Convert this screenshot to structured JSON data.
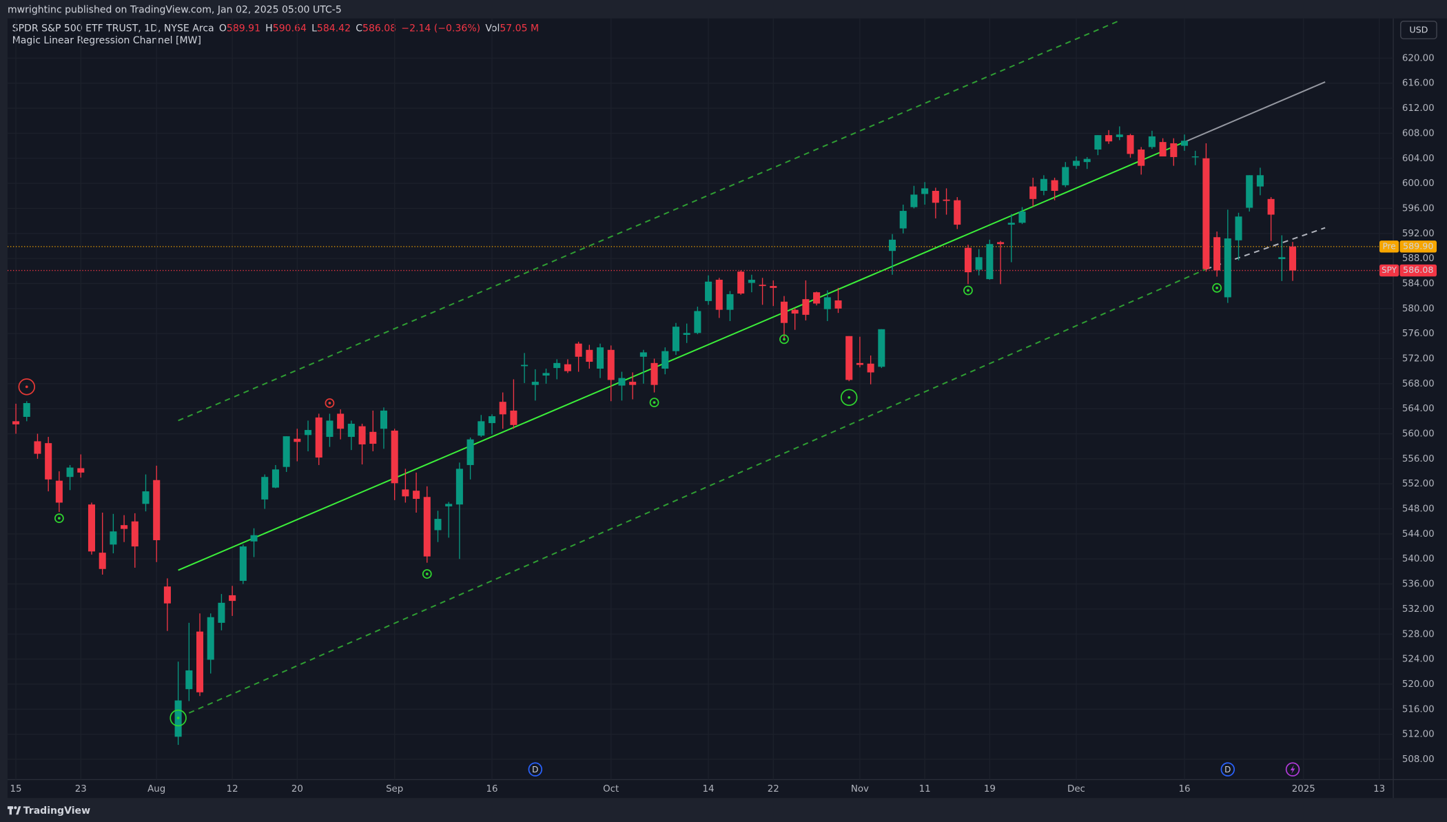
{
  "header": {
    "text": "mwrightinc published on TradingView.com, Jan 02, 2025 05:00 UTC-5"
  },
  "currency": "USD",
  "legend": {
    "symbol": "SPDR S&P 500 ETF TRUST, 1D, NYSE Arca",
    "ohlc": [
      {
        "key": "O",
        "value": 589.91
      },
      {
        "key": "H",
        "value": 590.64
      },
      {
        "key": "L",
        "value": 584.42
      },
      {
        "key": "C",
        "value": 586.08
      }
    ],
    "change": "−2.14 (−0.36%)",
    "vol_key": "Vol",
    "vol": "57.05 M",
    "indicator": "Magic Linear Regression Channel [MW]"
  },
  "footer": {
    "brand": "TradingView"
  },
  "chart_data": {
    "type": "candlestick",
    "up_color": "#089981",
    "down_color": "#f23645",
    "grid": true,
    "xlim": [
      -0.77,
      127.3
    ],
    "ylim": [
      504.76,
      626.34
    ],
    "xticks": [
      {
        "value": 0,
        "label": "15"
      },
      {
        "value": 6,
        "label": "23"
      },
      {
        "value": 13,
        "label": "Aug"
      },
      {
        "value": 20,
        "label": "12"
      },
      {
        "value": 26,
        "label": "20"
      },
      {
        "value": 35,
        "label": "Sep"
      },
      {
        "value": 44,
        "label": "16"
      },
      {
        "value": 55,
        "label": "Oct"
      },
      {
        "value": 64,
        "label": "14"
      },
      {
        "value": 70,
        "label": "22"
      },
      {
        "value": 78,
        "label": "Nov"
      },
      {
        "value": 84,
        "label": "11"
      },
      {
        "value": 90,
        "label": "19"
      },
      {
        "value": 98,
        "label": "Dec"
      },
      {
        "value": 108,
        "label": "16"
      },
      {
        "value": 119,
        "label": "2025"
      },
      {
        "value": 126,
        "label": "13"
      }
    ],
    "yticks": [
      {
        "value": 508,
        "label": "508.00"
      },
      {
        "value": 512,
        "label": "512.00"
      },
      {
        "value": 516,
        "label": "516.00"
      },
      {
        "value": 520,
        "label": "520.00"
      },
      {
        "value": 524,
        "label": "524.00"
      },
      {
        "value": 528,
        "label": "528.00"
      },
      {
        "value": 532,
        "label": "532.00"
      },
      {
        "value": 536,
        "label": "536.00"
      },
      {
        "value": 540,
        "label": "540.00"
      },
      {
        "value": 544,
        "label": "544.00"
      },
      {
        "value": 548,
        "label": "548.00"
      },
      {
        "value": 552,
        "label": "552.00"
      },
      {
        "value": 556,
        "label": "556.00"
      },
      {
        "value": 560,
        "label": "560.00"
      },
      {
        "value": 564,
        "label": "564.00"
      },
      {
        "value": 568,
        "label": "568.00"
      },
      {
        "value": 572,
        "label": "572.00"
      },
      {
        "value": 576,
        "label": "576.00"
      },
      {
        "value": 580,
        "label": "580.00"
      },
      {
        "value": 584,
        "label": "584.00"
      },
      {
        "value": 588,
        "label": "588.00"
      },
      {
        "value": 592,
        "label": "592.00"
      },
      {
        "value": 596,
        "label": "596.00"
      },
      {
        "value": 600,
        "label": "600.00"
      },
      {
        "value": 604,
        "label": "604.00"
      },
      {
        "value": 608,
        "label": "608.00"
      },
      {
        "value": 612,
        "label": "612.00"
      },
      {
        "value": 616,
        "label": "616.00"
      },
      {
        "value": 620,
        "label": "620.00"
      }
    ],
    "open": [
      562.0,
      562.7,
      558.8,
      558.5,
      552.5,
      553.1,
      554.5,
      548.7,
      541.0,
      542.3,
      545.4,
      546.0,
      548.8,
      552.6,
      535.6,
      511.6,
      519.2,
      528.4,
      523.9,
      529.8,
      534.2,
      536.5,
      542.8,
      549.5,
      551.4,
      554.7,
      559.2,
      559.8,
      562.6,
      559.5,
      563.2,
      559.5,
      561.2,
      560.3,
      560.8,
      560.5,
      551.1,
      550.9,
      549.9,
      544.6,
      548.4,
      548.7,
      555.0,
      559.7,
      561.7,
      565.1,
      563.7,
      570.8,
      567.8,
      569.3,
      570.5,
      571.1,
      574.4,
      573.4,
      570.4,
      573.4,
      567.7,
      568.3,
      572.3,
      571.3,
      570.4,
      573.2,
      575.8,
      576.1,
      581.2,
      584.6,
      579.8,
      585.9,
      584.1,
      583.8,
      583.6,
      581.1,
      579.8,
      581.5,
      582.6,
      579.9,
      581.3,
      575.6,
      571.3,
      571.2,
      570.7,
      589.2,
      592.8,
      596.2,
      598.3,
      598.8,
      597.4,
      597.3,
      589.7,
      586.2,
      584.7,
      590.6,
      593.4,
      593.7,
      599.5,
      598.8,
      600.5,
      599.7,
      602.8,
      603.4,
      605.4,
      607.7,
      607.4,
      607.7,
      605.4,
      605.8,
      606.6,
      606.4,
      606.0,
      604.2,
      604.0,
      591.4,
      581.8,
      590.9,
      596.1,
      599.5,
      597.5,
      587.9,
      589.91
    ],
    "high": [
      564.8,
      565.2,
      560.0,
      559.5,
      554.0,
      555.0,
      556.7,
      549.0,
      547.4,
      547.2,
      547.0,
      547.3,
      553.5,
      554.9,
      536.9,
      523.6,
      529.8,
      531.3,
      531.3,
      534.4,
      535.7,
      542.3,
      544.9,
      553.5,
      555.0,
      559.6,
      560.8,
      562.1,
      563.2,
      563.2,
      563.9,
      562.1,
      561.6,
      563.7,
      564.2,
      560.8,
      554.4,
      553.8,
      551.6,
      547.7,
      549.1,
      555.4,
      559.4,
      563.0,
      563.1,
      566.6,
      568.7,
      572.9,
      570.3,
      570.4,
      571.9,
      571.9,
      574.7,
      574.2,
      574.4,
      574.1,
      569.9,
      569.8,
      573.4,
      572.0,
      573.8,
      577.7,
      577.6,
      580.3,
      585.3,
      584.9,
      582.8,
      586.1,
      585.4,
      584.9,
      584.5,
      582.0,
      580.1,
      584.5,
      582.7,
      582.9,
      583.3,
      575.6,
      575.5,
      572.5,
      576.7,
      591.9,
      596.6,
      599.6,
      600.2,
      599.3,
      599.2,
      597.8,
      590.2,
      589.5,
      591.0,
      590.8,
      595.1,
      596.2,
      600.9,
      601.3,
      600.9,
      603.4,
      604.3,
      604.2,
      607.7,
      608.5,
      609.1,
      607.9,
      605.8,
      608.4,
      607.2,
      607.2,
      607.8,
      605.2,
      606.4,
      592.3,
      595.8,
      595.3,
      601.3,
      602.5,
      597.8,
      591.7,
      590.64
    ],
    "low": [
      560.0,
      562.0,
      556.0,
      550.8,
      547.5,
      551.0,
      553.0,
      540.7,
      537.5,
      540.9,
      542.7,
      538.6,
      547.6,
      539.5,
      528.5,
      510.3,
      517.3,
      518.1,
      521.7,
      528.6,
      530.9,
      536.0,
      540.3,
      548.0,
      551.3,
      553.9,
      555.6,
      557.2,
      555.0,
      557.9,
      559.1,
      557.4,
      555.1,
      557.2,
      557.6,
      549.4,
      549.0,
      547.4,
      539.4,
      542.7,
      543.4,
      540.0,
      552.7,
      559.5,
      559.9,
      560.8,
      560.8,
      568.1,
      565.3,
      568.0,
      568.7,
      569.7,
      569.9,
      570.4,
      568.9,
      565.2,
      565.3,
      565.5,
      568.0,
      566.6,
      569.5,
      572.6,
      574.5,
      575.9,
      580.6,
      578.5,
      578.0,
      582.2,
      582.6,
      580.6,
      580.4,
      574.9,
      576.6,
      578.1,
      580.5,
      578.0,
      579.3,
      568.4,
      570.6,
      567.9,
      570.5,
      585.4,
      592.0,
      596.0,
      596.6,
      594.4,
      595.0,
      592.7,
      583.9,
      585.3,
      584.6,
      583.9,
      587.4,
      593.5,
      596.3,
      598.1,
      597.3,
      599.4,
      602.3,
      602.3,
      604.5,
      606.3,
      606.9,
      604.1,
      601.4,
      605.5,
      604.3,
      602.8,
      605.2,
      602.9,
      585.9,
      585.1,
      580.9,
      587.7,
      595.5,
      598.1,
      590.8,
      584.4,
      584.42
    ],
    "close": [
      561.5,
      564.9,
      556.8,
      552.7,
      549.0,
      554.6,
      553.8,
      541.2,
      538.4,
      544.4,
      544.8,
      542.0,
      550.8,
      543.0,
      532.9,
      517.4,
      522.2,
      518.7,
      530.7,
      533.0,
      533.3,
      542.0,
      543.8,
      553.1,
      554.3,
      559.6,
      558.7,
      560.6,
      556.2,
      562.1,
      560.8,
      561.6,
      558.3,
      558.4,
      563.7,
      552.1,
      550.0,
      549.6,
      540.4,
      546.4,
      548.8,
      554.4,
      559.1,
      562.0,
      562.8,
      563.1,
      561.4,
      571.0,
      568.3,
      569.7,
      571.3,
      570.0,
      572.3,
      571.5,
      573.8,
      568.6,
      568.9,
      567.8,
      573.0,
      567.8,
      573.2,
      577.1,
      576.1,
      579.6,
      584.3,
      579.8,
      582.3,
      582.4,
      584.6,
      583.6,
      583.3,
      577.7,
      579.2,
      579.0,
      580.8,
      581.8,
      580.0,
      568.6,
      571.0,
      569.8,
      576.7,
      591.0,
      595.6,
      598.2,
      599.2,
      596.9,
      597.2,
      593.4,
      585.8,
      588.2,
      590.3,
      590.3,
      593.7,
      595.5,
      597.5,
      600.7,
      598.8,
      602.6,
      603.6,
      603.9,
      607.7,
      606.7,
      607.8,
      604.7,
      602.8,
      607.5,
      604.3,
      604.2,
      606.8,
      604.3,
      586.3,
      586.1,
      591.2,
      594.7,
      601.3,
      601.3,
      595.0,
      588.2,
      586.08
    ],
    "regression": [
      {
        "x": [
          15,
          108
        ],
        "y": [
          538.2,
          606.6
        ],
        "color": "#3cf03a",
        "dash": false
      },
      {
        "x": [
          108,
          121
        ],
        "y": [
          606.6,
          616.2
        ],
        "color": "#9598a1",
        "dash": false
      },
      {
        "x": [
          15,
          102
        ],
        "y": [
          562.1,
          626.0
        ],
        "color": "#2f9e33",
        "dash": true
      },
      {
        "x": [
          16,
          110
        ],
        "y": [
          515.4,
          586.3
        ],
        "color": "#2f9e33",
        "dash": true
      },
      {
        "x": [
          110,
          121
        ],
        "y": [
          586.3,
          592.9
        ],
        "color": "#b2b5be",
        "dash": true
      }
    ],
    "signals": [
      {
        "x": 1,
        "y": 567.5,
        "color": "#e53935",
        "size": "large"
      },
      {
        "x": 29,
        "y": 564.9,
        "color": "#e53935",
        "size": "small"
      },
      {
        "x": 4,
        "y": 546.5,
        "color": "#2fd52f",
        "size": "small"
      },
      {
        "x": 38,
        "y": 537.6,
        "color": "#2fd52f",
        "size": "small"
      },
      {
        "x": 59,
        "y": 565.0,
        "color": "#2fd52f",
        "size": "small"
      },
      {
        "x": 71,
        "y": 575.1,
        "color": "#2fd52f",
        "size": "small"
      },
      {
        "x": 88,
        "y": 582.9,
        "color": "#2fd52f",
        "size": "small"
      },
      {
        "x": 111,
        "y": 583.3,
        "color": "#2fd52f",
        "size": "small"
      },
      {
        "x": 15,
        "y": 514.6,
        "color": "#2fd52f",
        "size": "large"
      },
      {
        "x": 77,
        "y": 565.8,
        "color": "#2fd52f",
        "size": "large"
      }
    ],
    "events": [
      {
        "x": 48,
        "label": "D",
        "color": "#2962ff"
      },
      {
        "x": 112,
        "label": "D",
        "color": "#2962ff"
      }
    ],
    "lightning": {
      "x": 118,
      "color": "#b13ad8"
    },
    "price_lines": [
      {
        "label": "Pre",
        "value": 589.9,
        "value_label": "589.90",
        "color": "#f7a600",
        "text_color": "#131722"
      },
      {
        "label": "SPY",
        "value": 586.08,
        "value_label": "586.08",
        "color": "#f23645",
        "text_color": "#ffffff"
      }
    ]
  }
}
